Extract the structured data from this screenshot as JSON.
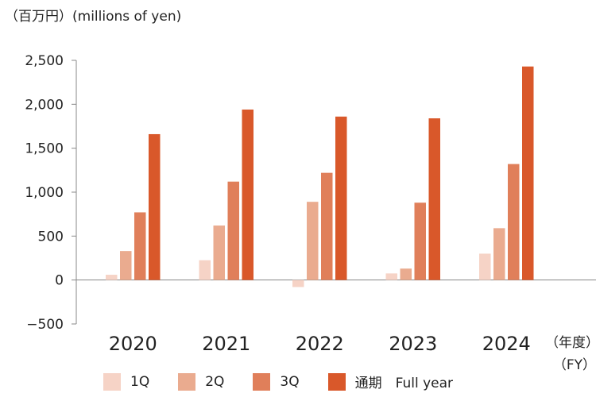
{
  "chart_data": {
    "type": "bar",
    "unit_label": "（百万円）(millions of yen)",
    "categories": [
      "2020",
      "2021",
      "2022",
      "2023",
      "2024"
    ],
    "category_suffix_top": "（年度）",
    "category_suffix_bottom": "（FY）",
    "series": [
      {
        "name": "1Q",
        "color": "#f6d3c6",
        "values": [
          60,
          225,
          -80,
          75,
          300
        ]
      },
      {
        "name": "2Q",
        "color": "#eaab8f",
        "values": [
          330,
          620,
          890,
          130,
          590
        ]
      },
      {
        "name": "3Q",
        "color": "#e07f5a",
        "values": [
          770,
          1120,
          1220,
          880,
          1320
        ]
      },
      {
        "name": "通期　Full year",
        "color": "#d9582a",
        "values": [
          1660,
          1940,
          1860,
          1840,
          2430
        ]
      }
    ],
    "ylim": [
      -500,
      2500
    ],
    "yticks": [
      "−500",
      "0",
      "500",
      "1,000",
      "1,500",
      "2,000",
      "2,500"
    ],
    "grid": false,
    "legend_position": "bottom"
  }
}
